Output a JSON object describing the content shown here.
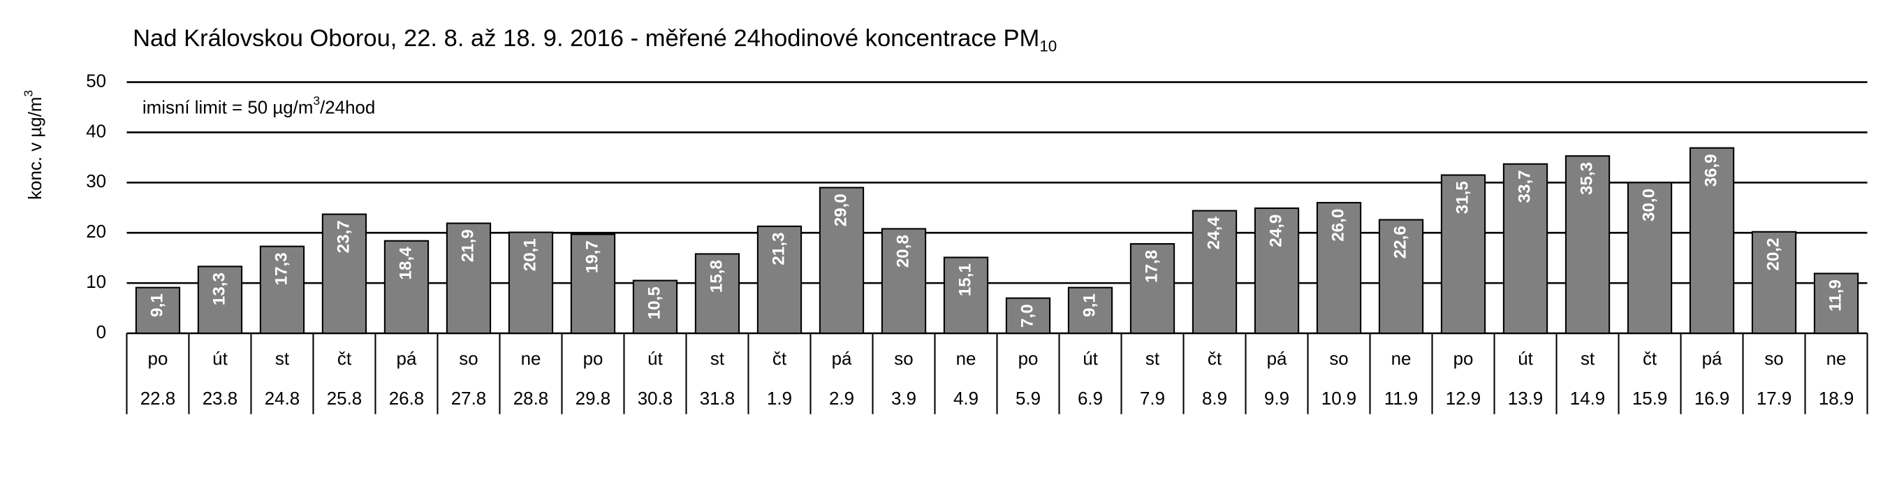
{
  "chart_data": {
    "type": "bar",
    "title": "Nad Královskou Oborou, 22. 8. až 18. 9. 2016 - měřené 24hodinové koncentrace PM",
    "title_subscript": "10",
    "y_label": [
      "konc. v µg/m",
      "3"
    ],
    "annotation": [
      "imisní limit = 50 µg/m",
      "3",
      "/24hod"
    ],
    "weekdays": [
      "po",
      "út",
      "st",
      "čt",
      "pá",
      "so",
      "ne",
      "po",
      "út",
      "st",
      "čt",
      "pá",
      "so",
      "ne",
      "po",
      "út",
      "st",
      "čt",
      "pá",
      "so",
      "ne",
      "po",
      "út",
      "st",
      "čt",
      "pá",
      "so",
      "ne"
    ],
    "categories": [
      "22.8",
      "23.8",
      "24.8",
      "25.8",
      "26.8",
      "27.8",
      "28.8",
      "29.8",
      "30.8",
      "31.8",
      "1.9",
      "2.9",
      "3.9",
      "4.9",
      "5.9",
      "6.9",
      "7.9",
      "8.9",
      "9.9",
      "10.9",
      "11.9",
      "12.9",
      "13.9",
      "14.9",
      "15.9",
      "16.9",
      "17.9",
      "18.9"
    ],
    "values": [
      9.1,
      13.3,
      17.3,
      23.7,
      18.4,
      21.9,
      20.1,
      19.7,
      10.5,
      15.8,
      21.3,
      29.0,
      20.8,
      15.1,
      7.0,
      9.1,
      17.8,
      24.4,
      24.9,
      26.0,
      22.6,
      31.5,
      33.7,
      35.3,
      30.0,
      36.9,
      20.2,
      11.9
    ],
    "value_labels": [
      "9,1",
      "13,3",
      "17,3",
      "23,7",
      "18,4",
      "21,9",
      "20,1",
      "19,7",
      "10,5",
      "15,8",
      "21,3",
      "29,0",
      "20,8",
      "15,1",
      "7,0",
      "9,1",
      "17,8",
      "24,4",
      "24,9",
      "26,0",
      "22,6",
      "31,5",
      "33,7",
      "35,3",
      "30,0",
      "36,9",
      "20,2",
      "11,9"
    ],
    "color": "#808080",
    "ylim": [
      0,
      50
    ],
    "yticks": [
      0,
      10,
      20,
      30,
      40,
      50
    ],
    "grid": true
  }
}
